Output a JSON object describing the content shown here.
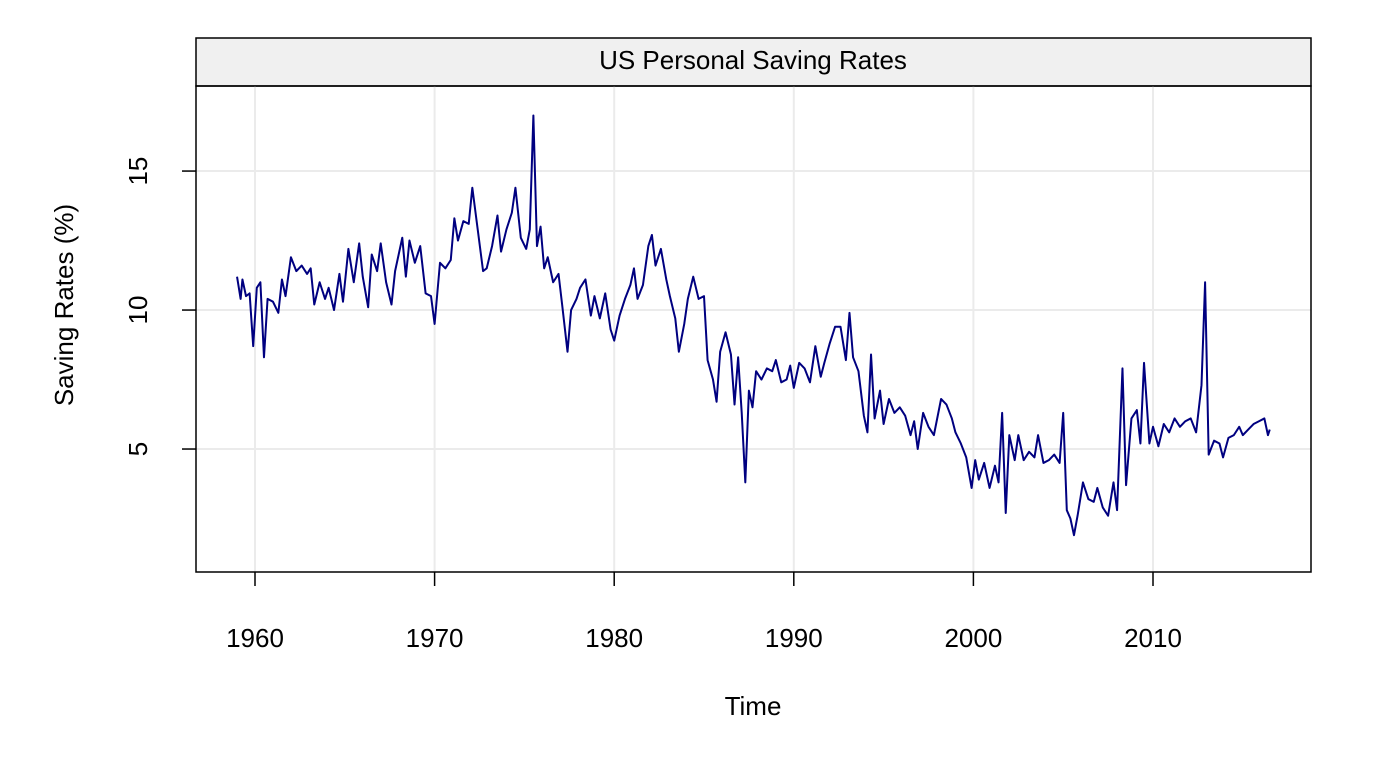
{
  "chart_data": {
    "type": "line",
    "title": "US Personal Saving Rates",
    "x_label": "Time",
    "y_label": "Saving Rates (%)",
    "color": "#000080",
    "grid": true,
    "xlim": [
      1956.715,
      2018.797
    ],
    "ylim": [
      0.576,
      18.06
    ],
    "xticks": [
      1960,
      1970,
      1980,
      1990,
      2000,
      2010
    ],
    "yticks": [
      5,
      10,
      15
    ],
    "x": [
      1959.0,
      1959.2,
      1959.3,
      1959.5,
      1959.7,
      1959.9,
      1960.1,
      1960.3,
      1960.5,
      1960.7,
      1961.0,
      1961.3,
      1961.5,
      1961.7,
      1962.0,
      1962.3,
      1962.6,
      1962.9,
      1963.1,
      1963.3,
      1963.6,
      1963.9,
      1964.1,
      1964.4,
      1964.7,
      1964.9,
      1965.2,
      1965.5,
      1965.8,
      1966.0,
      1966.3,
      1966.5,
      1966.8,
      1967.0,
      1967.3,
      1967.6,
      1967.8,
      1968.2,
      1968.4,
      1968.6,
      1968.9,
      1969.2,
      1969.5,
      1969.8,
      1970.0,
      1970.3,
      1970.6,
      1970.9,
      1971.1,
      1971.3,
      1971.6,
      1971.9,
      1972.1,
      1972.4,
      1972.7,
      1972.9,
      1973.2,
      1973.5,
      1973.7,
      1974.0,
      1974.3,
      1974.5,
      1974.8,
      1975.1,
      1975.3,
      1975.5,
      1975.7,
      1975.9,
      1976.1,
      1976.3,
      1976.6,
      1976.9,
      1977.1,
      1977.4,
      1977.6,
      1977.9,
      1978.1,
      1978.4,
      1978.7,
      1978.9,
      1979.2,
      1979.5,
      1979.8,
      1980.0,
      1980.3,
      1980.6,
      1980.9,
      1981.1,
      1981.3,
      1981.6,
      1981.9,
      1982.1,
      1982.3,
      1982.6,
      1982.9,
      1983.1,
      1983.4,
      1983.6,
      1983.9,
      1984.1,
      1984.4,
      1984.7,
      1985.0,
      1985.2,
      1985.5,
      1985.7,
      1985.9,
      1986.2,
      1986.5,
      1986.7,
      1986.9,
      1987.1,
      1987.3,
      1987.5,
      1987.7,
      1987.9,
      1988.2,
      1988.5,
      1988.8,
      1989.0,
      1989.3,
      1989.6,
      1989.8,
      1990.0,
      1990.3,
      1990.6,
      1990.9,
      1991.2,
      1991.5,
      1991.7,
      1992.0,
      1992.3,
      1992.6,
      1992.9,
      1993.1,
      1993.3,
      1993.6,
      1993.9,
      1994.1,
      1994.3,
      1994.5,
      1994.8,
      1995.0,
      1995.3,
      1995.6,
      1995.9,
      1996.2,
      1996.5,
      1996.7,
      1996.9,
      1997.2,
      1997.5,
      1997.8,
      1998.2,
      1998.5,
      1998.8,
      1999.0,
      1999.3,
      1999.6,
      1999.9,
      2000.1,
      2000.3,
      2000.6,
      2000.9,
      2001.2,
      2001.4,
      2001.6,
      2001.8,
      2002.0,
      2002.3,
      2002.5,
      2002.8,
      2003.1,
      2003.4,
      2003.6,
      2003.9,
      2004.2,
      2004.5,
      2004.8,
      2005.0,
      2005.2,
      2005.4,
      2005.6,
      2005.8,
      2006.1,
      2006.4,
      2006.7,
      2006.9,
      2007.2,
      2007.5,
      2007.8,
      2008.0,
      2008.3,
      2008.5,
      2008.8,
      2009.1,
      2009.3,
      2009.5,
      2009.8,
      2010.0,
      2010.3,
      2010.6,
      2010.9,
      2011.2,
      2011.5,
      2011.8,
      2012.1,
      2012.4,
      2012.7,
      2012.9,
      2013.1,
      2013.4,
      2013.7,
      2013.9,
      2014.2,
      2014.5,
      2014.8,
      2015.0,
      2015.3,
      2015.6,
      2015.9,
      2016.2,
      2016.4,
      2016.5
    ],
    "values": [
      11.2,
      10.4,
      11.1,
      10.5,
      10.6,
      8.7,
      10.8,
      11.0,
      8.3,
      10.4,
      10.3,
      9.9,
      11.1,
      10.5,
      11.9,
      11.4,
      11.6,
      11.3,
      11.5,
      10.2,
      11.0,
      10.4,
      10.8,
      10.0,
      11.3,
      10.3,
      12.2,
      11.0,
      12.4,
      11.2,
      10.1,
      12.0,
      11.4,
      12.4,
      11.0,
      10.2,
      11.4,
      12.6,
      11.2,
      12.5,
      11.7,
      12.3,
      10.6,
      10.5,
      9.5,
      11.7,
      11.5,
      11.8,
      13.3,
      12.5,
      13.2,
      13.1,
      14.4,
      12.9,
      11.4,
      11.5,
      12.3,
      13.4,
      12.1,
      12.9,
      13.5,
      14.4,
      12.6,
      12.2,
      12.9,
      17.0,
      12.3,
      13.0,
      11.5,
      11.9,
      11.0,
      11.3,
      10.2,
      8.5,
      10.0,
      10.4,
      10.8,
      11.1,
      9.8,
      10.5,
      9.7,
      10.6,
      9.3,
      8.9,
      9.8,
      10.4,
      10.9,
      11.5,
      10.4,
      10.9,
      12.3,
      12.7,
      11.6,
      12.2,
      11.1,
      10.5,
      9.7,
      8.5,
      9.5,
      10.4,
      11.2,
      10.4,
      10.5,
      8.2,
      7.5,
      6.7,
      8.5,
      9.2,
      8.4,
      6.6,
      8.3,
      6.3,
      3.8,
      7.1,
      6.5,
      7.8,
      7.5,
      7.9,
      7.8,
      8.2,
      7.4,
      7.5,
      8.0,
      7.2,
      8.1,
      7.9,
      7.4,
      8.7,
      7.6,
      8.1,
      8.8,
      9.4,
      9.4,
      8.2,
      9.9,
      8.3,
      7.8,
      6.2,
      5.6,
      8.4,
      6.1,
      7.1,
      5.9,
      6.8,
      6.3,
      6.5,
      6.2,
      5.5,
      6.0,
      5.0,
      6.3,
      5.8,
      5.5,
      6.8,
      6.6,
      6.1,
      5.6,
      5.2,
      4.7,
      3.6,
      4.6,
      3.9,
      4.5,
      3.6,
      4.4,
      3.8,
      6.3,
      2.7,
      5.5,
      4.6,
      5.5,
      4.6,
      4.9,
      4.7,
      5.5,
      4.5,
      4.6,
      4.8,
      4.5,
      6.3,
      2.8,
      2.5,
      1.9,
      2.6,
      3.8,
      3.2,
      3.1,
      3.6,
      2.9,
      2.6,
      3.8,
      2.8,
      7.9,
      3.7,
      6.1,
      6.4,
      5.2,
      8.1,
      5.2,
      5.8,
      5.1,
      5.9,
      5.6,
      6.1,
      5.8,
      6.0,
      6.1,
      5.6,
      7.3,
      11.0,
      4.8,
      5.3,
      5.2,
      4.7,
      5.4,
      5.5,
      5.8,
      5.5,
      5.7,
      5.9,
      6.0,
      6.1,
      5.5,
      5.7
    ]
  }
}
